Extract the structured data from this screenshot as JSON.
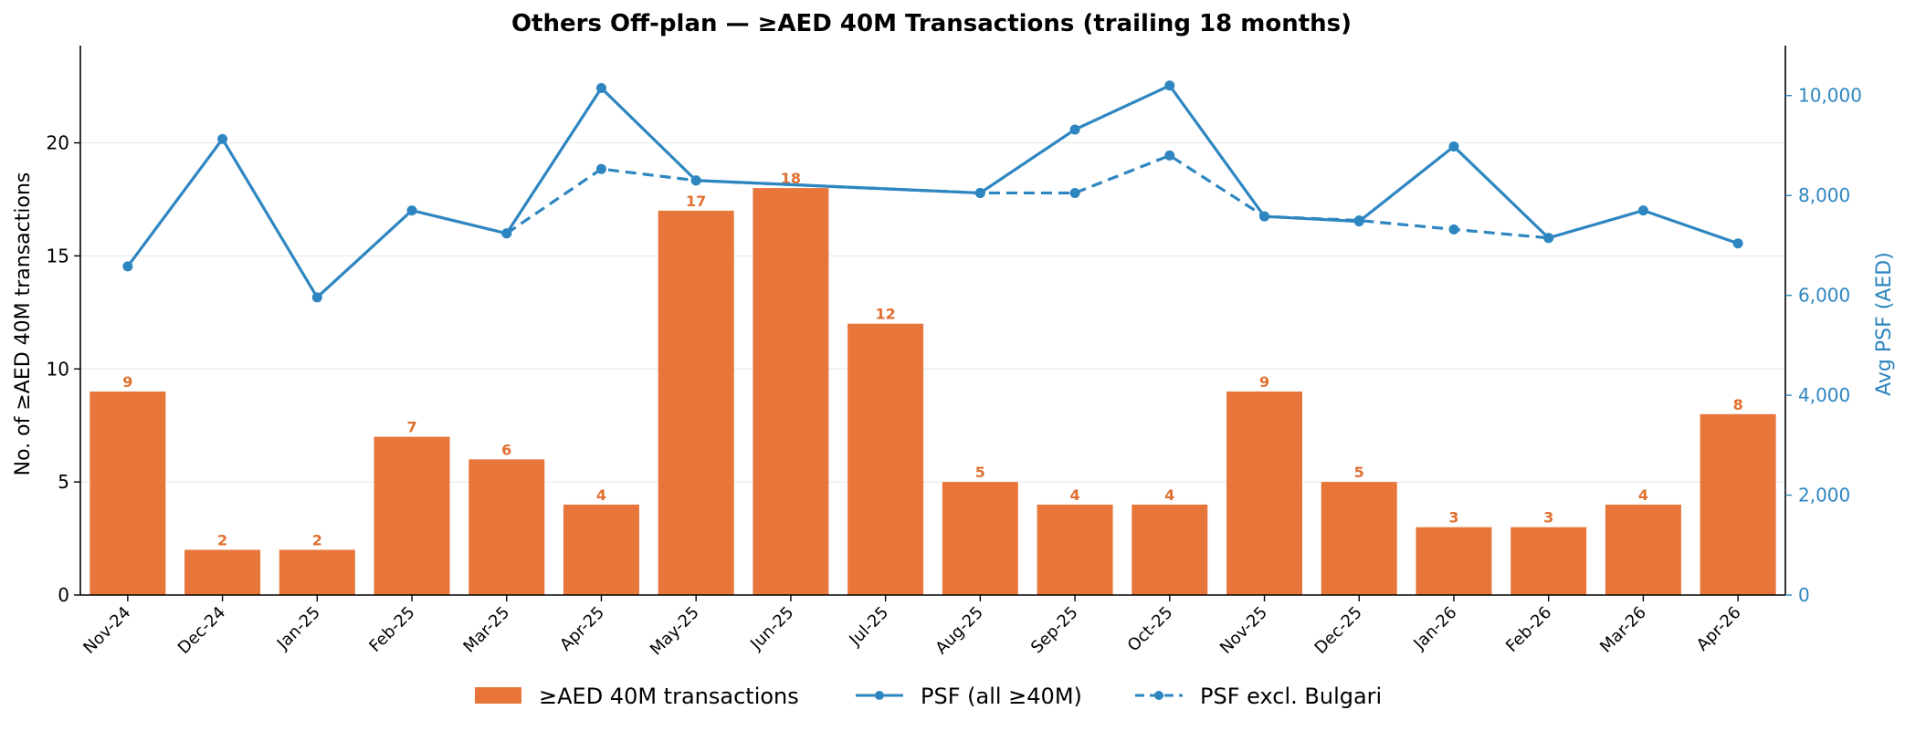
{
  "chart_data": {
    "type": "bar",
    "title": "Others Off-plan — ≥AED 40M Transactions (trailing 18 months)",
    "categories": [
      "Nov-24",
      "Dec-24",
      "Jan-25",
      "Feb-25",
      "Mar-25",
      "Apr-25",
      "May-25",
      "Jun-25",
      "Jul-25",
      "Aug-25",
      "Sep-25",
      "Oct-25",
      "Nov-25",
      "Dec-25",
      "Jan-26",
      "Feb-26",
      "Mar-26",
      "Apr-26"
    ],
    "series": [
      {
        "name": "≥AED 40M transactions",
        "type": "bar",
        "axis": "left",
        "color": "#e8763a",
        "values": [
          9,
          2,
          2,
          7,
          6,
          4,
          17,
          18,
          12,
          5,
          4,
          4,
          9,
          5,
          3,
          3,
          4,
          8
        ]
      },
      {
        "name": "PSF (all ≥40M)",
        "type": "line",
        "axis": "right",
        "style": "solid",
        "color": "#2e86c1",
        "values": [
          6580,
          9130,
          5960,
          7700,
          7240,
          10150,
          8300,
          null,
          null,
          8050,
          9320,
          10200,
          7580,
          7480,
          8980,
          7150,
          7700,
          7040
        ]
      },
      {
        "name": "PSF excl. Bulgari",
        "type": "line",
        "axis": "right",
        "style": "dashed",
        "color": "#2e86c1",
        "values": [
          null,
          null,
          null,
          null,
          7240,
          8530,
          8300,
          null,
          null,
          8050,
          8050,
          8800,
          7580,
          7500,
          7320,
          7150,
          null,
          null
        ]
      }
    ],
    "ylabel": "No. of ≥AED 40M transactions",
    "ylabel_right": "Avg PSF (AED)",
    "ylim": [
      0,
      24.3
    ],
    "ylim_right": [
      0,
      11000
    ],
    "yticks": [
      0,
      5,
      10,
      15,
      20
    ],
    "yticks_right": [
      0,
      2000,
      4000,
      6000,
      8000,
      10000
    ],
    "ytick_labels_right": [
      "0",
      "2,000",
      "4,000",
      "6,000",
      "8,000",
      "10,000"
    ],
    "grid": "horizontal",
    "legend": "bottom-center"
  }
}
